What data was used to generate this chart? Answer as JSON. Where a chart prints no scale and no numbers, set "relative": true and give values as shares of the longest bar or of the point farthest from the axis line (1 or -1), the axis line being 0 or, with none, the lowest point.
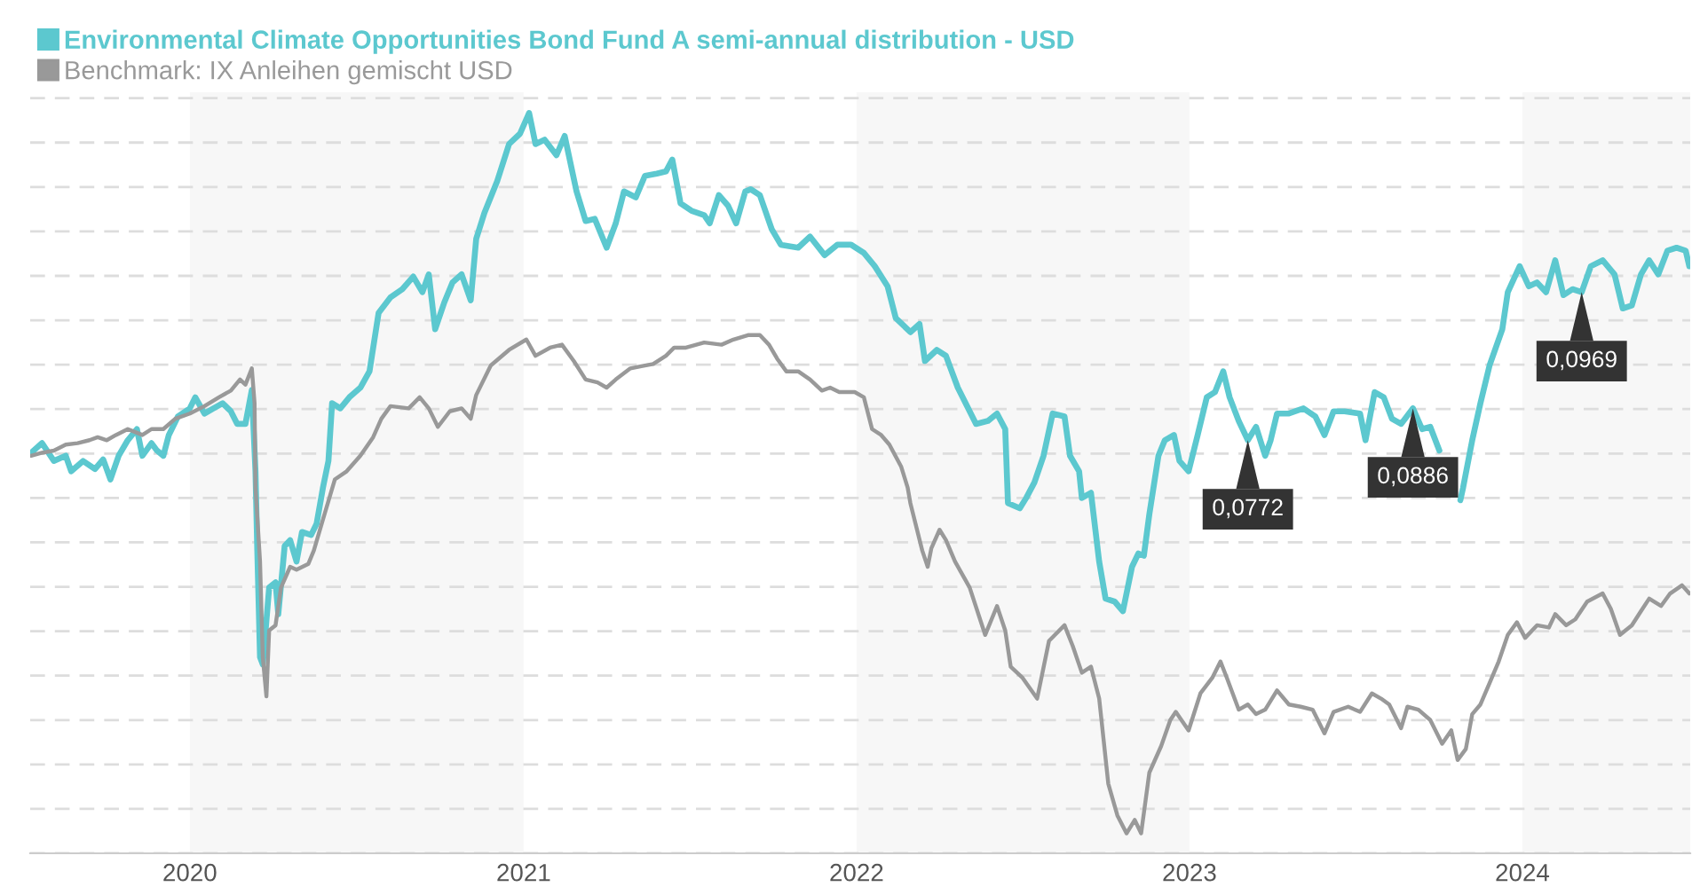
{
  "chart_data": {
    "type": "line",
    "relative": true,
    "xlim": [
      "2019-07-10",
      "2024-07-03"
    ],
    "xticks": [
      {
        "value": "2020-01-01",
        "label": "2020"
      },
      {
        "value": "2021-01-01",
        "label": "2021"
      },
      {
        "value": "2022-01-01",
        "label": "2022"
      },
      {
        "value": "2023-01-01",
        "label": "2023"
      },
      {
        "value": "2024-01-01",
        "label": "2024"
      }
    ],
    "grid": "y",
    "legend": "top left",
    "bands": [
      {
        "axis": "x",
        "from": "2020-01-01",
        "to": "2021-01-01",
        "color": "#f7f7f7"
      },
      {
        "axis": "x",
        "from": "2022-01-01",
        "to": "2023-01-01",
        "color": "#f7f7f7"
      },
      {
        "axis": "x",
        "from": "2024-01-01",
        "to": "2024-07-03",
        "color": "#f7f7f7"
      }
    ],
    "annotations": [
      {
        "text": "0,0772",
        "x": "2023-03-06",
        "y": 0.558
      },
      {
        "text": "0,0886",
        "x": "2023-09-03",
        "y": 0.601
      },
      {
        "text": "0,0969",
        "x": "2024-03-06",
        "y": 0.758
      }
    ],
    "series": [
      {
        "name": "Environmental Climate Opportunities Bond Fund A semi-annual distribution - USD",
        "color": "#5cc8cf",
        "x": [
          "2019-07-11",
          "2019-07-23",
          "2019-08-05",
          "2019-08-18",
          "2019-08-24",
          "2019-09-06",
          "2019-09-19",
          "2019-09-28",
          "2019-10-06",
          "2019-10-15",
          "2019-10-25",
          "2019-11-04",
          "2019-11-10",
          "2019-11-20",
          "2019-11-26",
          "2019-12-03",
          "2019-12-09",
          "2019-12-19",
          "2020-01-01",
          "2020-01-07",
          "2020-01-17",
          "2020-01-27",
          "2020-02-06",
          "2020-02-15",
          "2020-02-22",
          "2020-03-02",
          "2020-03-09",
          "2020-03-13",
          "2020-03-15",
          "2020-03-18",
          "2020-03-21",
          "2020-03-28",
          "2020-04-04",
          "2020-04-07",
          "2020-04-14",
          "2020-04-20",
          "2020-04-27",
          "2020-05-03",
          "2020-05-13",
          "2020-05-19",
          "2020-05-26",
          "2020-06-01",
          "2020-06-05",
          "2020-06-14",
          "2020-06-24",
          "2020-07-06",
          "2020-07-16",
          "2020-07-26",
          "2020-08-08",
          "2020-08-21",
          "2020-09-02",
          "2020-09-12",
          "2020-09-19",
          "2020-09-26",
          "2020-10-06",
          "2020-10-15",
          "2020-10-25",
          "2020-11-04",
          "2020-11-10",
          "2020-11-19",
          "2020-12-03",
          "2020-12-16",
          "2020-12-28",
          "2021-01-07",
          "2021-01-14",
          "2021-01-24",
          "2021-02-06",
          "2021-02-15",
          "2021-02-28",
          "2021-03-10",
          "2021-03-20",
          "2021-04-02",
          "2021-04-12",
          "2021-04-21",
          "2021-05-04",
          "2021-05-14",
          "2021-05-27",
          "2021-06-06",
          "2021-06-13",
          "2021-06-22",
          "2021-07-04",
          "2021-07-18",
          "2021-07-24",
          "2021-08-03",
          "2021-08-13",
          "2021-08-22",
          "2021-09-01",
          "2021-09-07",
          "2021-09-17",
          "2021-09-30",
          "2021-10-10",
          "2021-10-29",
          "2021-11-11",
          "2021-11-27",
          "2021-12-11",
          "2021-12-26",
          "2022-01-09",
          "2022-01-21",
          "2022-02-04",
          "2022-02-13",
          "2022-03-01",
          "2022-03-11",
          "2022-03-17",
          "2022-03-30",
          "2022-04-09",
          "2022-04-22",
          "2022-05-12",
          "2022-05-25",
          "2022-06-04",
          "2022-06-13",
          "2022-06-16",
          "2022-06-29",
          "2022-07-06",
          "2022-07-15",
          "2022-07-25",
          "2022-08-04",
          "2022-08-17",
          "2022-08-23",
          "2022-09-02",
          "2022-09-05",
          "2022-09-15",
          "2022-09-24",
          "2022-10-01",
          "2022-10-11",
          "2022-10-20",
          "2022-10-30",
          "2022-11-06",
          "2022-11-12",
          "2022-11-18",
          "2022-11-28",
          "2022-12-05",
          "2022-12-15",
          "2022-12-21",
          "2022-12-31",
          "2023-01-10",
          "2023-01-20",
          "2023-01-29",
          "2023-02-07",
          "2023-02-14",
          "2023-02-24",
          "2023-03-06",
          "2023-03-15",
          "2023-03-25",
          "2023-03-31",
          "2023-04-07",
          "2023-04-20",
          "2023-05-06",
          "2023-05-19",
          "2023-05-29",
          "2023-06-08",
          "2023-06-20",
          "2023-07-07",
          "2023-07-13",
          "2023-07-23",
          "2023-08-02",
          "2023-08-11",
          "2023-08-21",
          "2023-09-03",
          "2023-09-13",
          "2023-09-22",
          "2023-10-02",
          "2023-10-18",
          "2023-10-25",
          "2023-10-28",
          "2023-11-07",
          "2023-11-16",
          "2023-11-26",
          "2023-12-10",
          "2023-12-16",
          "2023-12-29",
          "2024-01-08",
          "2024-01-17",
          "2024-01-27",
          "2024-02-06",
          "2024-02-15",
          "2024-02-25",
          "2024-03-06",
          "2024-03-16",
          "2024-03-29",
          "2024-04-11",
          "2024-04-20",
          "2024-04-30",
          "2024-05-10",
          "2024-05-19",
          "2024-05-29",
          "2024-06-08",
          "2024-06-18",
          "2024-06-28",
          "2024-07-02"
        ],
        "values": [
          0.541,
          0.554,
          0.53,
          0.537,
          0.516,
          0.53,
          0.519,
          0.532,
          0.505,
          0.537,
          0.558,
          0.573,
          0.537,
          0.554,
          0.544,
          0.537,
          0.565,
          0.59,
          0.601,
          0.616,
          0.594,
          0.601,
          0.608,
          0.597,
          0.58,
          0.58,
          0.626,
          0.516,
          0.409,
          0.265,
          0.255,
          0.359,
          0.366,
          0.323,
          0.415,
          0.423,
          0.394,
          0.434,
          0.43,
          0.445,
          0.494,
          0.53,
          0.608,
          0.601,
          0.616,
          0.629,
          0.651,
          0.73,
          0.751,
          0.762,
          0.779,
          0.758,
          0.782,
          0.708,
          0.744,
          0.771,
          0.782,
          0.747,
          0.83,
          0.865,
          0.908,
          0.958,
          0.972,
          1,
          0.958,
          0.964,
          0.943,
          0.969,
          0.894,
          0.854,
          0.857,
          0.818,
          0.851,
          0.894,
          0.886,
          0.915,
          0.918,
          0.921,
          0.937,
          0.878,
          0.868,
          0.862,
          0.851,
          0.889,
          0.875,
          0.851,
          0.894,
          0.897,
          0.889,
          0.843,
          0.822,
          0.818,
          0.833,
          0.808,
          0.822,
          0.822,
          0.811,
          0.793,
          0.766,
          0.723,
          0.704,
          0.715,
          0.665,
          0.68,
          0.672,
          0.629,
          0.58,
          0.584,
          0.594,
          0.573,
          0.473,
          0.466,
          0.48,
          0.501,
          0.537,
          0.594,
          0.59,
          0.537,
          0.516,
          0.48,
          0.487,
          0.394,
          0.344,
          0.34,
          0.327,
          0.387,
          0.405,
          0.402,
          0.458,
          0.537,
          0.558,
          0.565,
          0.53,
          0.516,
          0.565,
          0.616,
          0.623,
          0.651,
          0.616,
          0.584,
          0.558,
          0.576,
          0.537,
          0.558,
          0.594,
          0.594,
          0.601,
          0.59,
          0.565,
          0.597,
          0.597,
          0.594,
          0.558,
          0.623,
          0.616,
          0.587,
          0.58,
          0.601,
          0.573,
          0.576,
          0.544,
          null,
          0.477,
          0.494,
          0.558,
          0.608,
          0.659,
          0.708,
          0.758,
          0.793,
          0.766,
          0.771,
          0.758,
          0.801,
          0.754,
          0.762,
          0.758,
          0.793,
          0.801,
          0.782,
          0.736,
          0.74,
          0.782,
          0.801,
          0.782,
          0.814,
          0.818,
          0.814,
          0.793
        ]
      },
      {
        "name": "Benchmark: IX Anleihen gemischt USD",
        "color": "#999999",
        "x": [
          "2019-07-11",
          "2019-07-23",
          "2019-08-05",
          "2019-08-18",
          "2019-08-31",
          "2019-09-13",
          "2019-09-22",
          "2019-10-02",
          "2019-10-12",
          "2019-10-25",
          "2019-11-10",
          "2019-11-20",
          "2019-12-03",
          "2019-12-16",
          "2020-01-01",
          "2020-01-17",
          "2020-02-02",
          "2020-02-15",
          "2020-02-25",
          "2020-03-02",
          "2020-03-09",
          "2020-03-12",
          "2020-03-13",
          "2020-03-18",
          "2020-03-21",
          "2020-03-25",
          "2020-03-28",
          "2020-04-04",
          "2020-04-10",
          "2020-04-20",
          "2020-04-27",
          "2020-05-10",
          "2020-05-16",
          "2020-05-26",
          "2020-06-08",
          "2020-06-21",
          "2020-07-06",
          "2020-07-20",
          "2020-07-29",
          "2020-08-08",
          "2020-08-28",
          "2020-09-09",
          "2020-09-19",
          "2020-09-29",
          "2020-10-12",
          "2020-10-25",
          "2020-11-04",
          "2020-11-10",
          "2020-11-26",
          "2020-12-16",
          "2021-01-04",
          "2021-01-14",
          "2021-01-30",
          "2021-02-12",
          "2021-02-25",
          "2021-03-10",
          "2021-03-23",
          "2021-04-02",
          "2021-04-12",
          "2021-04-28",
          "2021-05-10",
          "2021-05-23",
          "2021-06-06",
          "2021-06-15",
          "2021-06-28",
          "2021-07-18",
          "2021-08-06",
          "2021-08-19",
          "2021-09-04",
          "2021-09-17",
          "2021-09-27",
          "2021-10-06",
          "2021-10-16",
          "2021-10-29",
          "2021-11-11",
          "2021-11-24",
          "2021-12-03",
          "2021-12-13",
          "2021-12-30",
          "2022-01-09",
          "2022-01-18",
          "2022-01-28",
          "2022-02-06",
          "2022-02-19",
          "2022-02-26",
          "2022-03-01",
          "2022-03-14",
          "2022-03-20",
          "2022-03-24",
          "2022-04-02",
          "2022-04-09",
          "2022-04-19",
          "2022-05-05",
          "2022-05-22",
          "2022-06-04",
          "2022-06-13",
          "2022-06-19",
          "2022-07-02",
          "2022-07-18",
          "2022-07-31",
          "2022-08-17",
          "2022-08-26",
          "2022-09-05",
          "2022-09-15",
          "2022-09-24",
          "2022-10-04",
          "2022-10-14",
          "2022-10-24",
          "2022-11-02",
          "2022-11-09",
          "2022-11-18",
          "2022-12-01",
          "2022-12-11",
          "2022-12-17",
          "2022-12-31",
          "2023-01-13",
          "2023-01-26",
          "2023-02-04",
          "2023-02-11",
          "2023-02-24",
          "2023-03-06",
          "2023-03-15",
          "2023-03-25",
          "2023-04-07",
          "2023-04-20",
          "2023-05-03",
          "2023-05-16",
          "2023-05-29",
          "2023-06-08",
          "2023-06-24",
          "2023-07-07",
          "2023-07-20",
          "2023-07-30",
          "2023-08-08",
          "2023-08-21",
          "2023-08-28",
          "2023-09-09",
          "2023-09-22",
          "2023-10-05",
          "2023-10-15",
          "2023-10-22",
          "2023-10-31",
          "2023-11-07",
          "2023-11-16",
          "2023-11-26",
          "2023-12-06",
          "2023-12-16",
          "2023-12-26",
          "2024-01-04",
          "2024-01-17",
          "2024-01-30",
          "2024-02-06",
          "2024-02-18",
          "2024-02-28",
          "2024-03-12",
          "2024-03-29",
          "2024-04-07",
          "2024-04-17",
          "2024-04-30",
          "2024-05-10",
          "2024-05-19",
          "2024-06-01",
          "2024-06-11",
          "2024-06-24",
          "2024-07-02"
        ],
        "values": [
          0.537,
          0.541,
          0.544,
          0.552,
          0.554,
          0.558,
          0.562,
          0.558,
          0.565,
          0.573,
          0.565,
          0.573,
          0.573,
          0.587,
          0.594,
          0.604,
          0.616,
          0.625,
          0.64,
          0.633,
          0.655,
          0.608,
          0.494,
          0.394,
          0.265,
          0.212,
          0.301,
          0.308,
          0.359,
          0.387,
          0.383,
          0.391,
          0.409,
          0.451,
          0.505,
          0.516,
          0.537,
          0.562,
          0.587,
          0.604,
          0.601,
          0.616,
          0.601,
          0.576,
          0.597,
          0.601,
          0.587,
          0.619,
          0.659,
          0.68,
          0.694,
          0.672,
          0.683,
          0.687,
          0.665,
          0.64,
          0.636,
          0.629,
          0.64,
          0.655,
          0.658,
          0.661,
          0.672,
          0.683,
          0.683,
          0.69,
          0.687,
          0.694,
          0.7,
          0.7,
          0.687,
          0.668,
          0.651,
          0.651,
          0.64,
          0.625,
          0.629,
          0.623,
          0.623,
          0.616,
          0.573,
          0.565,
          0.552,
          0.522,
          0.494,
          0.473,
          0.409,
          0.387,
          0.412,
          0.437,
          0.423,
          0.394,
          0.359,
          0.295,
          0.334,
          0.301,
          0.252,
          0.237,
          0.209,
          0.287,
          0.308,
          0.28,
          0.244,
          0.252,
          0.209,
          0.094,
          0.051,
          0.027,
          0.045,
          0.027,
          0.109,
          0.145,
          0.18,
          0.191,
          0.166,
          0.216,
          0.237,
          0.259,
          0.237,
          0.194,
          0.201,
          0.188,
          0.194,
          0.22,
          0.201,
          0.198,
          0.194,
          0.162,
          0.191,
          0.198,
          0.191,
          0.216,
          0.209,
          0.201,
          0.169,
          0.198,
          0.194,
          0.18,
          0.148,
          0.166,
          0.126,
          0.141,
          0.188,
          0.201,
          0.23,
          0.259,
          0.295,
          0.312,
          0.291,
          0.308,
          0.305,
          0.323,
          0.308,
          0.316,
          0.34,
          0.351,
          0.33,
          0.295,
          0.308,
          0.327,
          0.344,
          0.334,
          0.351,
          0.362,
          0.351
        ]
      }
    ]
  }
}
